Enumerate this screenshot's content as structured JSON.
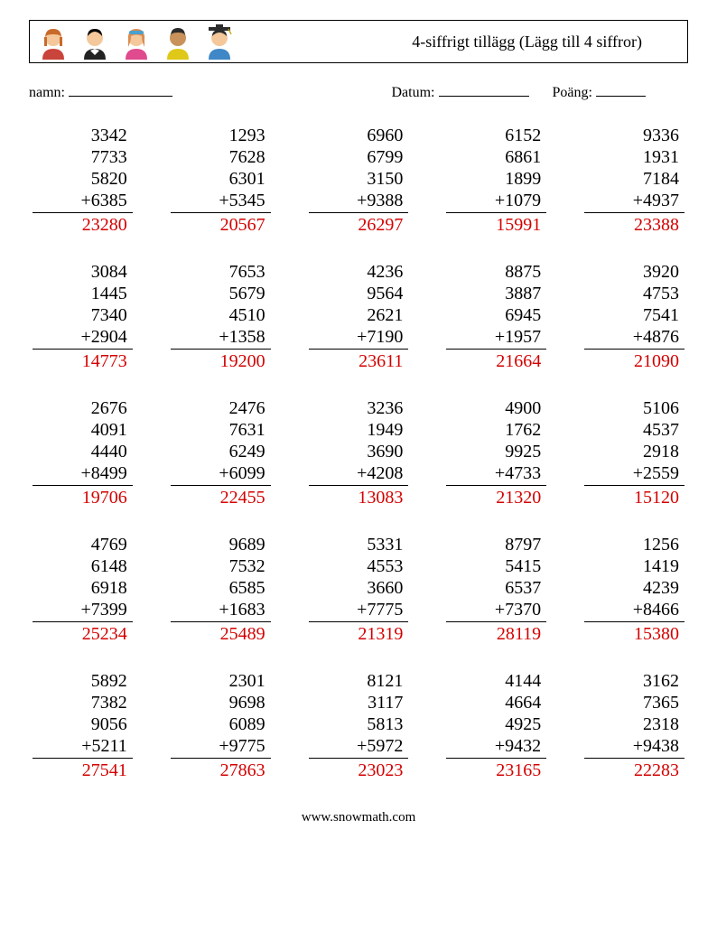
{
  "meta": {
    "title": "4-siffrigt tillägg (Lägg till 4 siffror)",
    "name_label": "namn:",
    "date_label": "Datum:",
    "score_label": "Poäng:",
    "footer": "www.snowmath.com",
    "title_fontsize": 18,
    "body_fontsize": 20,
    "answer_color": "#d40000",
    "text_color": "#000000",
    "bg_color": "#ffffff",
    "operator": "+"
  },
  "avatars": [
    {
      "hair": "#c96a2b",
      "shirt": "#c9443a",
      "skin": "#f4c89a"
    },
    {
      "hair": "#000000",
      "shirt": "#222222",
      "skin": "#f4c89a",
      "collar": "#ffffff"
    },
    {
      "hair": "#d98c52",
      "band": "#4aa1ce",
      "shirt": "#e04a8e",
      "skin": "#f4c89a"
    },
    {
      "hair": "#2c2c2c",
      "shirt": "#e0c818",
      "skin": "#c9925a"
    },
    {
      "hair": "#2c2c2c",
      "cap": "#2c2c2c",
      "shirt": "#3f87c7",
      "skin": "#f4c89a"
    }
  ],
  "worksheet": {
    "rows": 5,
    "cols": 5,
    "type": "addition",
    "operand_count": 4,
    "problems": [
      {
        "operands": [
          3342,
          7733,
          5820,
          6385
        ],
        "answer": 23280
      },
      {
        "operands": [
          1293,
          7628,
          6301,
          5345
        ],
        "answer": 20567
      },
      {
        "operands": [
          6960,
          6799,
          3150,
          9388
        ],
        "answer": 26297
      },
      {
        "operands": [
          6152,
          6861,
          1899,
          1079
        ],
        "answer": 15991
      },
      {
        "operands": [
          9336,
          1931,
          7184,
          4937
        ],
        "answer": 23388
      },
      {
        "operands": [
          3084,
          1445,
          7340,
          2904
        ],
        "answer": 14773
      },
      {
        "operands": [
          7653,
          5679,
          4510,
          1358
        ],
        "answer": 19200
      },
      {
        "operands": [
          4236,
          9564,
          2621,
          7190
        ],
        "answer": 23611
      },
      {
        "operands": [
          8875,
          3887,
          6945,
          1957
        ],
        "answer": 21664
      },
      {
        "operands": [
          3920,
          4753,
          7541,
          4876
        ],
        "answer": 21090
      },
      {
        "operands": [
          2676,
          4091,
          4440,
          8499
        ],
        "answer": 19706
      },
      {
        "operands": [
          2476,
          7631,
          6249,
          6099
        ],
        "answer": 22455
      },
      {
        "operands": [
          3236,
          1949,
          3690,
          4208
        ],
        "answer": 13083
      },
      {
        "operands": [
          4900,
          1762,
          9925,
          4733
        ],
        "answer": 21320
      },
      {
        "operands": [
          5106,
          4537,
          2918,
          2559
        ],
        "answer": 15120
      },
      {
        "operands": [
          4769,
          6148,
          6918,
          7399
        ],
        "answer": 25234
      },
      {
        "operands": [
          9689,
          7532,
          6585,
          1683
        ],
        "answer": 25489
      },
      {
        "operands": [
          5331,
          4553,
          3660,
          7775
        ],
        "answer": 21319
      },
      {
        "operands": [
          8797,
          5415,
          6537,
          7370
        ],
        "answer": 28119
      },
      {
        "operands": [
          1256,
          1419,
          4239,
          8466
        ],
        "answer": 15380
      },
      {
        "operands": [
          5892,
          7382,
          9056,
          5211
        ],
        "answer": 27541
      },
      {
        "operands": [
          2301,
          9698,
          6089,
          9775
        ],
        "answer": 27863
      },
      {
        "operands": [
          8121,
          3117,
          5813,
          5972
        ],
        "answer": 23023
      },
      {
        "operands": [
          4144,
          4664,
          4925,
          9432
        ],
        "answer": 23165
      },
      {
        "operands": [
          3162,
          7365,
          2318,
          9438
        ],
        "answer": 22283
      }
    ]
  }
}
